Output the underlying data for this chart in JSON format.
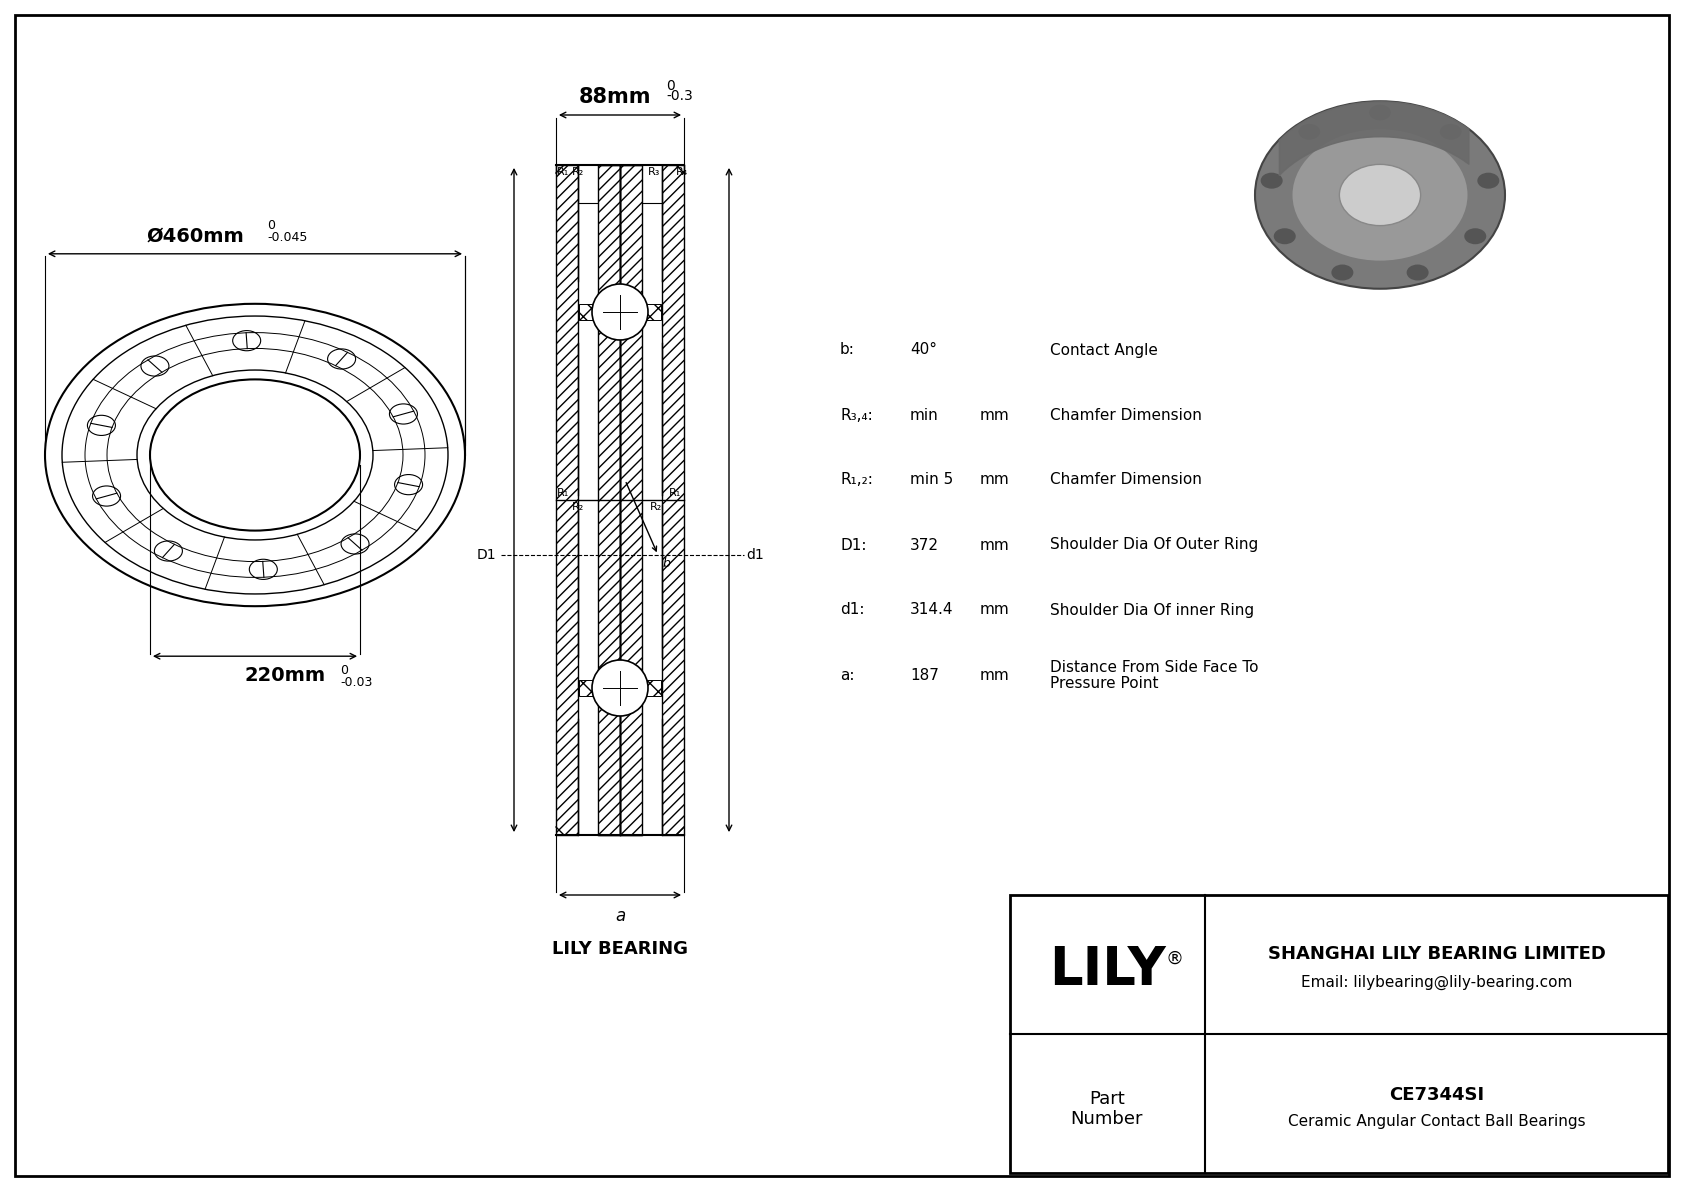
{
  "bg_color": "#ffffff",
  "border_color": "#000000",
  "title": "CE7344SI",
  "subtitle": "Ceramic Angular Contact Ball Bearings",
  "company": "SHANGHAI LILY BEARING LIMITED",
  "email": "Email: lilybearing@lily-bearing.com",
  "brand": "LILY",
  "part_label": "Part\nNumber",
  "watermark": "LILY BEARING",
  "dim_outer": "Ø460mm",
  "dim_outer_sup": "0",
  "dim_outer_tol": "-0.045",
  "dim_width": "88mm",
  "dim_width_sup": "0",
  "dim_width_tol": "-0.3",
  "dim_inner": "220mm",
  "dim_inner_sup": "0",
  "dim_inner_tol": "-0.03",
  "specs": [
    [
      "b:",
      "40°",
      "",
      "Contact Angle"
    ],
    [
      "R₃,₄:",
      "min",
      "mm",
      "Chamfer Dimension"
    ],
    [
      "R₁,₂:",
      "min 5",
      "mm",
      "Chamfer Dimension"
    ],
    [
      "D1:",
      "372",
      "mm",
      "Shoulder Dia Of Outer Ring"
    ],
    [
      "d1:",
      "314.4",
      "mm",
      "Shoulder Dia Of inner Ring"
    ],
    [
      "a:",
      "187",
      "mm",
      "Distance From Side Face To\nPressure Point"
    ]
  ],
  "lc": "#000000",
  "gray1": "#666666",
  "gray2": "#999999",
  "gray3": "#bbbbbb",
  "gray4": "#dddddd"
}
